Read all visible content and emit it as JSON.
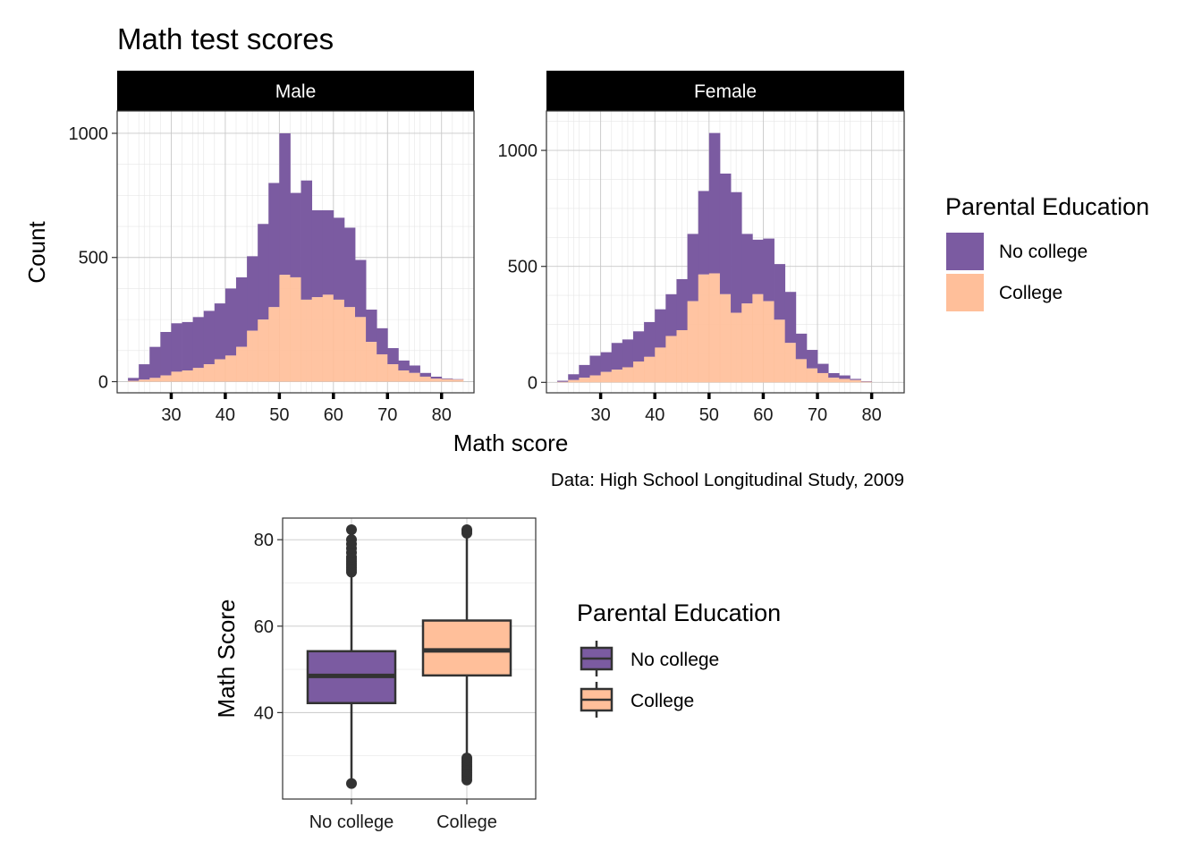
{
  "title": "Math test scores",
  "caption": "Data: High School Longitudinal Study, 2009",
  "colors": {
    "no_college": "#7b5ba1",
    "college": "#ffbf9a",
    "strip_bg": "#000000",
    "box_line": "#333333"
  },
  "histogram_legend": {
    "title": "Parental Education",
    "items": [
      {
        "label": "No college",
        "color": "#7b5ba1"
      },
      {
        "label": "College",
        "color": "#ffbf9a"
      }
    ]
  },
  "boxplot_legend": {
    "title": "Parental Education",
    "items": [
      {
        "label": "No college",
        "color": "#7b5ba1"
      },
      {
        "label": "College",
        "color": "#ffbf9a"
      }
    ]
  },
  "chart_data": [
    {
      "type": "bar",
      "subtype": "stacked histogram",
      "facet": "Male",
      "xlabel": "Math score",
      "ylabel": "Count",
      "xlim": [
        20,
        86
      ],
      "ylim": [
        -45,
        1090
      ],
      "xticks": [
        30,
        40,
        50,
        60,
        70,
        80
      ],
      "yticks": [
        0,
        500,
        1000
      ],
      "grid": true,
      "bin_width": 2,
      "bin_start": 22,
      "series": [
        {
          "name": "College",
          "values": [
            3,
            8,
            15,
            25,
            40,
            45,
            55,
            70,
            90,
            105,
            140,
            205,
            250,
            300,
            430,
            420,
            330,
            340,
            350,
            330,
            300,
            260,
            160,
            110,
            70,
            45,
            35,
            20,
            12,
            10,
            8
          ]
        },
        {
          "name": "No college",
          "values": [
            12,
            62,
            125,
            175,
            195,
            195,
            205,
            215,
            225,
            270,
            280,
            300,
            385,
            500,
            570,
            340,
            480,
            350,
            340,
            330,
            320,
            230,
            130,
            105,
            65,
            40,
            30,
            15,
            8,
            3,
            2
          ]
        }
      ]
    },
    {
      "type": "bar",
      "subtype": "stacked histogram",
      "facet": "Female",
      "xlabel": "Math score",
      "ylabel": "Count",
      "xlim": [
        20,
        86
      ],
      "ylim": [
        -45,
        1170
      ],
      "xticks": [
        30,
        40,
        50,
        60,
        70,
        80
      ],
      "yticks": [
        0,
        500,
        1000
      ],
      "grid": true,
      "bin_width": 2,
      "bin_start": 22,
      "series": [
        {
          "name": "College",
          "values": [
            2,
            10,
            20,
            30,
            45,
            55,
            65,
            90,
            110,
            150,
            200,
            225,
            350,
            465,
            470,
            380,
            300,
            340,
            380,
            350,
            270,
            170,
            100,
            60,
            40,
            20,
            15,
            10,
            3
          ]
        },
        {
          "name": "No college",
          "values": [
            5,
            25,
            55,
            85,
            85,
            115,
            120,
            130,
            150,
            165,
            180,
            220,
            290,
            360,
            605,
            520,
            520,
            300,
            235,
            270,
            240,
            220,
            110,
            80,
            40,
            20,
            15,
            5,
            2
          ]
        }
      ]
    },
    {
      "type": "box",
      "xlabel": "",
      "ylabel": "Math Score",
      "categories": [
        "No college",
        "College"
      ],
      "ylim": [
        20,
        85
      ],
      "yticks": [
        40,
        60,
        80
      ],
      "grid": true,
      "series": [
        {
          "name": "No college",
          "min": 24,
          "q1": 42.2,
          "median": 48.5,
          "q3": 54.2,
          "max": 72,
          "outliers_high": [
            72.5,
            73,
            73.5,
            74,
            74.5,
            75,
            75.5,
            76,
            77,
            78,
            79,
            80,
            82.3
          ],
          "outliers_low": [
            23.6
          ]
        },
        {
          "name": "College",
          "min": 30,
          "q1": 48.6,
          "median": 54.4,
          "q3": 61.3,
          "max": 81,
          "outliers_high": [
            81.5,
            82,
            82.3
          ],
          "outliers_low": [
            24.4,
            25,
            25.5,
            26,
            26.5,
            27,
            27.5,
            28,
            28.5,
            29,
            29.5
          ]
        }
      ]
    }
  ]
}
